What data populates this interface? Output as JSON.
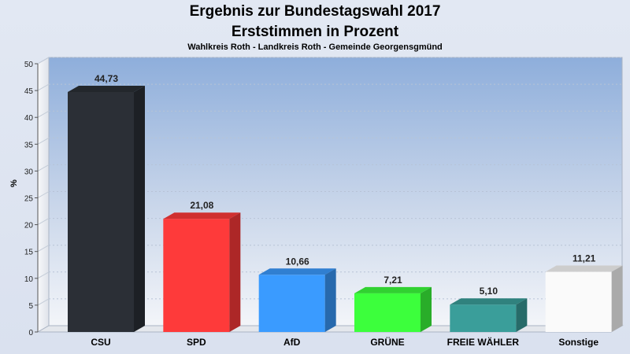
{
  "page": {
    "title": "Ergebnis zur Bundestagswahl 2017",
    "subtitle": "Erststimmen in Prozent",
    "region": "Wahlkreis Roth - Landkreis Roth - Gemeinde Georgensgmünd"
  },
  "chart_data": {
    "type": "bar",
    "title": "Ergebnis zur Bundestagswahl 2017",
    "subtitle": "Erststimmen in Prozent",
    "ylabel": "%",
    "ylim": [
      0,
      50
    ],
    "yticks": [
      0,
      5,
      10,
      15,
      20,
      25,
      30,
      35,
      40,
      45,
      50
    ],
    "grid": true,
    "categories": [
      "CSU",
      "SPD",
      "AfD",
      "GRÜNE",
      "FREIE WÄHLER",
      "Sonstige"
    ],
    "values": [
      44.73,
      21.08,
      10.66,
      7.21,
      5.1,
      11.21
    ],
    "value_labels": [
      "44,73",
      "21,08",
      "10,66",
      "7,21",
      "5,10",
      "11,21"
    ],
    "colors": [
      "#2b2f36",
      "#fe3a3a",
      "#3a9bff",
      "#3cff3c",
      "#3a9e9a",
      "#fafafa"
    ]
  }
}
